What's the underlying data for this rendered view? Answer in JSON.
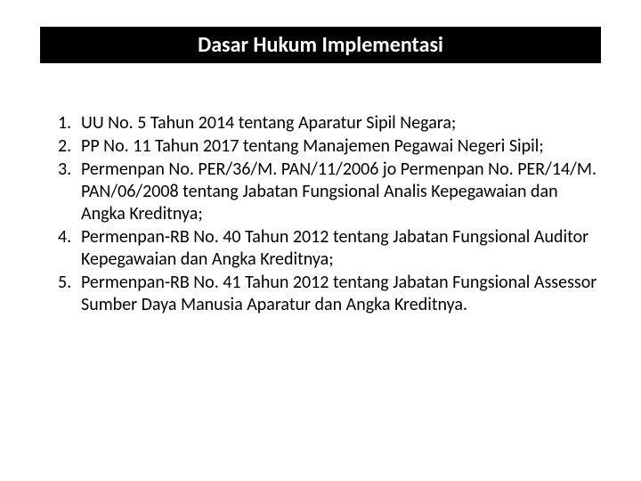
{
  "title": "Dasar Hukum Implementasi",
  "items": [
    {
      "number": "1.",
      "text": "UU No. 5 Tahun 2014 tentang Aparatur Sipil Negara;",
      "justify": false
    },
    {
      "number": "2.",
      "text": "PP No. 11 Tahun 2017 tentang Manajemen Pegawai Negeri Sipil;",
      "justify": true
    },
    {
      "number": "3.",
      "text": "Permenpan No. PER/36/M. PAN/11/2006 jo Permenpan No. PER/14/M. PAN/06/2008 tentang Jabatan Fungsional Analis Kepegawaian dan Angka Kreditnya;",
      "justify": false
    },
    {
      "number": "4.",
      "text": "Permenpan-RB No. 40 Tahun 2012 tentang Jabatan Fungsional Auditor Kepegawaian dan Angka Kreditnya;",
      "justify": false
    },
    {
      "number": "5.",
      "text": "Permenpan-RB No. 41 Tahun 2012 tentang Jabatan Fungsional Assessor Sumber Daya Manusia Aparatur dan Angka Kreditnya.",
      "justify": false
    }
  ],
  "styles": {
    "title_bg": "#000000",
    "title_color": "#ffffff",
    "title_fontsize": 24,
    "body_fontsize": 20,
    "body_color": "#000000",
    "background_color": "#ffffff"
  }
}
